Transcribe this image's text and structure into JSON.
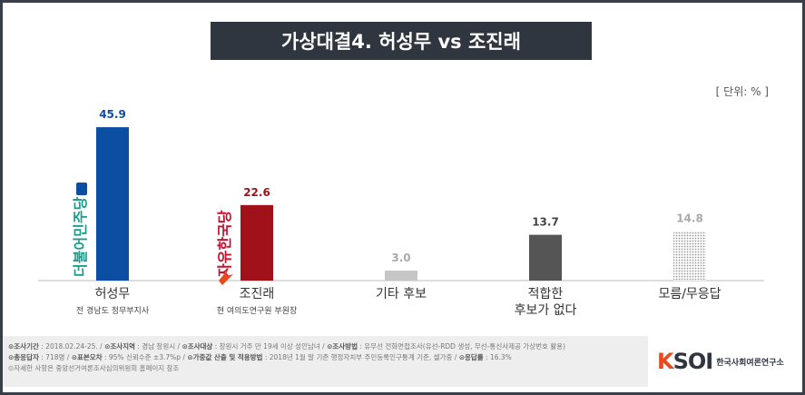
{
  "title": "가상대결4. 허성무 vs 조진래",
  "unit": "[ 단위: % ]",
  "chart_data": {
    "type": "bar",
    "categories": [
      "허성무",
      "조진래",
      "기타 후보",
      "적합한 후보가 없다",
      "모름/무응답"
    ],
    "category_lines": [
      [
        "허성무"
      ],
      [
        "조진래"
      ],
      [
        "기타 후보"
      ],
      [
        "적합한",
        "후보가 없다"
      ],
      [
        "모름/무응답"
      ]
    ],
    "subtitles": [
      "전 경남도 정무부지사",
      "현 여의도연구원 부원장",
      "",
      "",
      ""
    ],
    "values": [
      45.9,
      22.6,
      3.0,
      13.7,
      14.8
    ],
    "value_labels": [
      "45.9",
      "22.6",
      "3.0",
      "13.7",
      "14.8"
    ],
    "bar_colors": [
      "#0b4ea2",
      "#a0111a",
      "#c6c6c6",
      "#555555",
      "hatch"
    ],
    "value_label_colors": [
      "#0b4ea2",
      "#a0111a",
      "#aaaaaa",
      "#444444",
      "#aaaaaa"
    ],
    "party_logos": [
      "더불어민주당",
      "자유한국당",
      "",
      "",
      ""
    ],
    "ylim": [
      0,
      50
    ]
  },
  "footer": {
    "line1": [
      {
        "key": "조사기간",
        "val": "2018.02.24-25."
      },
      {
        "key": "조사지역",
        "val": "경남 창원시"
      },
      {
        "key": "조사대상",
        "val": "창원시 거주 만 19세 이상 성인남녀"
      },
      {
        "key": "조사방법",
        "val": "유무선 전화면접조사(유선-RDD 생성, 무선-통신사제공 가상번호 활용)"
      }
    ],
    "line2": [
      {
        "key": "총응답자",
        "val": "718명"
      },
      {
        "key": "표본오차",
        "val": "95% 신뢰수준 ±3.7%p"
      },
      {
        "key": "가중값 산출 및 적용방법",
        "val": "2018년 1월 말 기준 행정자치부 주민등록인구통계 기준, 셀가중"
      },
      {
        "key": "응답률",
        "val": "16.3%"
      }
    ],
    "line3": "자세한 사항은 중앙선거여론조사심의위원회 홈페이지 참조"
  },
  "logo": {
    "mark_k": "K",
    "mark_rest": "SOI",
    "text": "한국사회여론연구소"
  }
}
